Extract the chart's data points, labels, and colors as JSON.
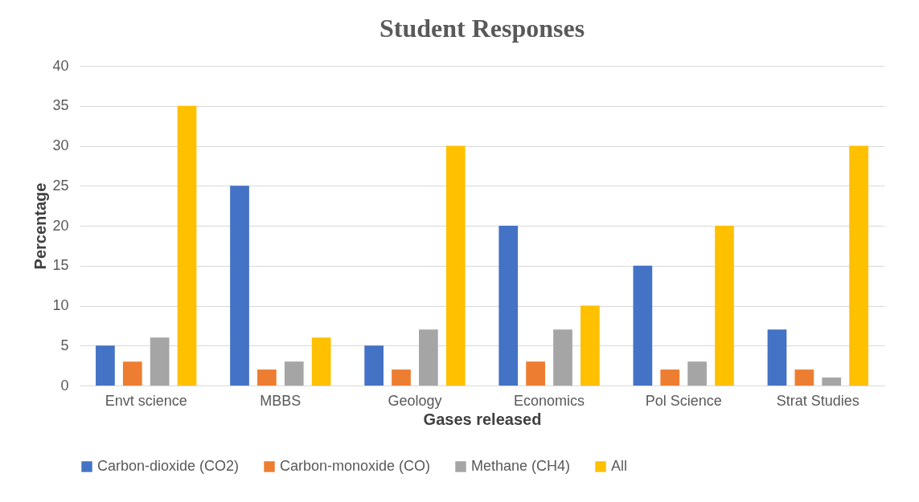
{
  "chart_data": {
    "type": "bar",
    "title": "Student Responses",
    "xlabel": "Gases released",
    "ylabel": "Percentage",
    "categories": [
      "Envt science",
      "MBBS",
      "Geology",
      "Economics",
      "Pol Science",
      "Strat Studies"
    ],
    "series": [
      {
        "name": "Carbon-dioxide (CO2)",
        "color": "#4472c4",
        "values": [
          5,
          25,
          5,
          20,
          15,
          7
        ]
      },
      {
        "name": "Carbon-monoxide (CO)",
        "color": "#ed7d31",
        "values": [
          3,
          2,
          2,
          3,
          2,
          2
        ]
      },
      {
        "name": "Methane (CH4)",
        "color": "#a5a5a5",
        "values": [
          6,
          3,
          7,
          7,
          3,
          1
        ]
      },
      {
        "name": "All",
        "color": "#ffc000",
        "values": [
          35,
          6,
          30,
          10,
          20,
          30
        ]
      }
    ],
    "ylim": [
      0,
      40
    ],
    "yticks": [
      0,
      5,
      10,
      15,
      20,
      25,
      30,
      35,
      40
    ],
    "grid": "y",
    "legend": "bottom"
  }
}
